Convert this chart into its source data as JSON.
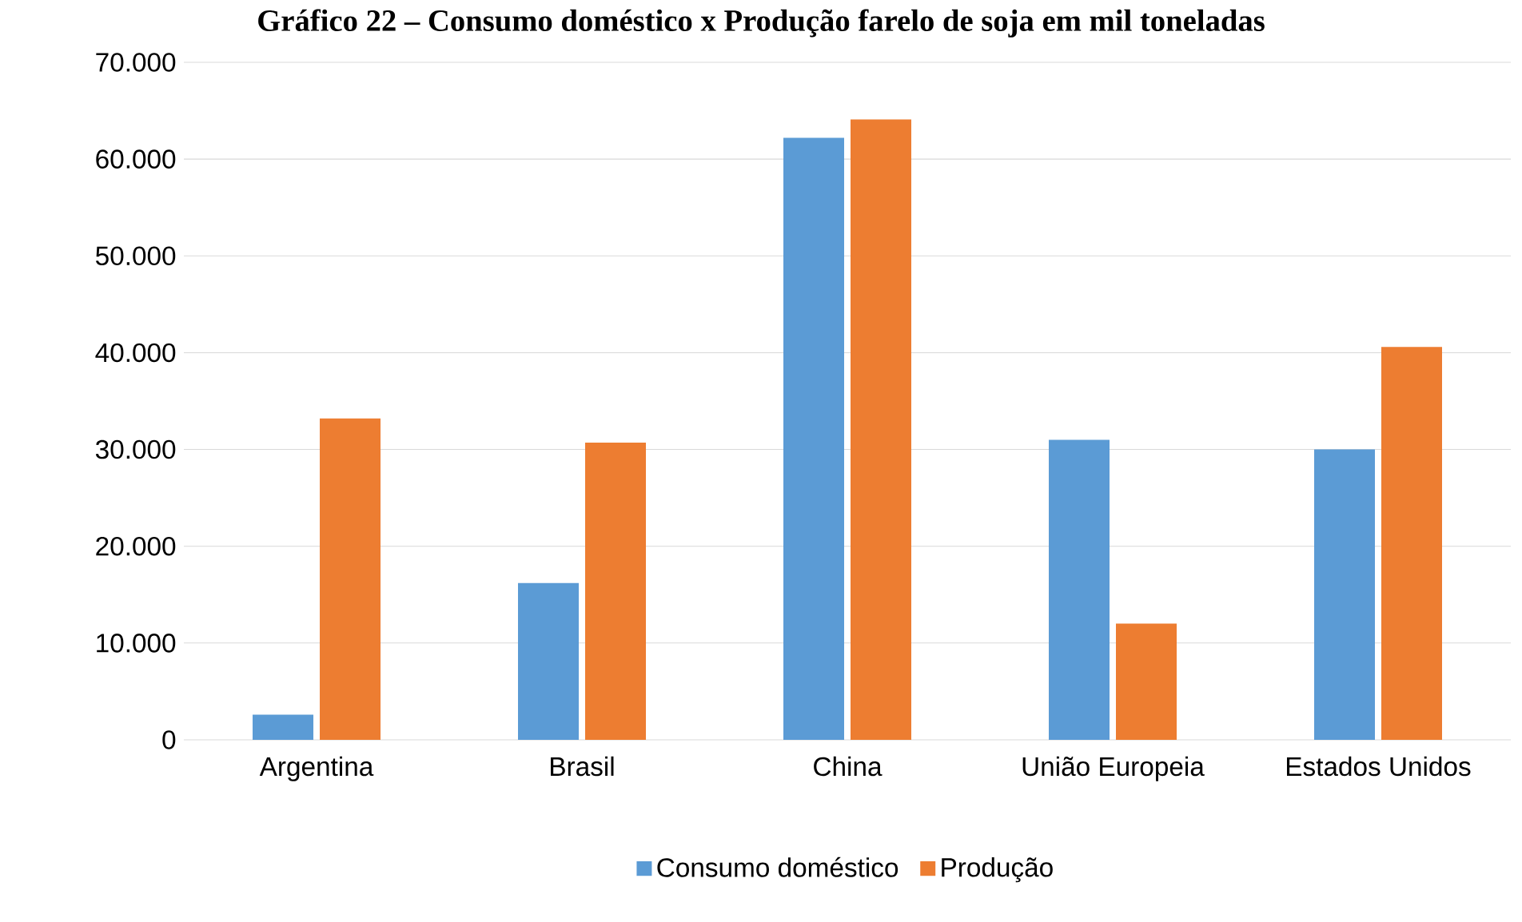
{
  "chart_data": {
    "type": "bar",
    "title": "Gráfico 22 – Consumo doméstico x Produção farelo de soja em mil toneladas",
    "categories": [
      "Argentina",
      "Brasil",
      "China",
      "União Europeia",
      "Estados Unidos"
    ],
    "series": [
      {
        "name": "Consumo doméstico",
        "color": "#5b9bd5",
        "values": [
          2600,
          16200,
          62200,
          31000,
          30000
        ]
      },
      {
        "name": "Produção",
        "color": "#ed7d31",
        "values": [
          33200,
          30700,
          64100,
          12000,
          40600
        ]
      }
    ],
    "ylim": [
      0,
      70000
    ],
    "yticks": [
      0,
      {
        "value": 10000,
        "label": "10.000"
      },
      {
        "value": 20000,
        "label": "20.000"
      },
      {
        "value": 30000,
        "label": "30.000"
      },
      {
        "value": 40000,
        "label": "40.000"
      },
      {
        "value": 50000,
        "label": "50.000"
      },
      {
        "value": 60000,
        "label": "60.000"
      },
      {
        "value": 70000,
        "label": "70.000"
      }
    ],
    "grid": "y",
    "legend": "bottom"
  }
}
